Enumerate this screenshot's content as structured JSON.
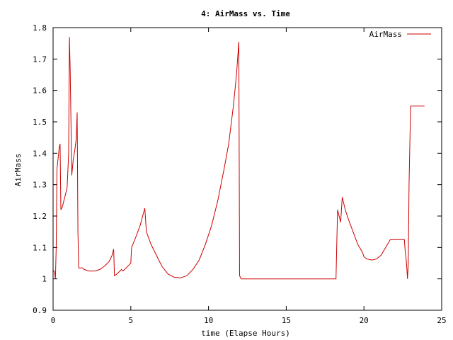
{
  "chart_data": {
    "type": "line",
    "title": "4: AirMass vs. Time",
    "xlabel": "time (Elapse Hours)",
    "ylabel": "AirMass",
    "xlim": [
      0,
      25
    ],
    "ylim": [
      0.9,
      1.8
    ],
    "xticks": [
      0,
      5,
      10,
      15,
      20,
      25
    ],
    "xtick_labels": [
      "0",
      "5",
      "10",
      "15",
      "20",
      "25"
    ],
    "yticks": [
      0.9,
      1,
      1.1,
      1.2,
      1.3,
      1.4,
      1.5,
      1.6,
      1.7,
      1.8
    ],
    "ytick_labels": [
      "0.9",
      "1",
      "1.1",
      "1.2",
      "1.3",
      "1.4",
      "1.5",
      "1.6",
      "1.7",
      "1.8"
    ],
    "grid": false,
    "legend_position": "top-right",
    "series": [
      {
        "name": "AirMass",
        "color": "#cc0000",
        "points": [
          [
            0.0,
            1.03
          ],
          [
            0.1,
            1.02
          ],
          [
            0.15,
            1.0
          ],
          [
            0.2,
            1.1
          ],
          [
            0.25,
            1.35
          ],
          [
            0.4,
            1.42
          ],
          [
            0.45,
            1.43
          ],
          [
            0.5,
            1.22
          ],
          [
            0.6,
            1.23
          ],
          [
            0.7,
            1.25
          ],
          [
            0.8,
            1.27
          ],
          [
            0.9,
            1.29
          ],
          [
            1.0,
            1.4
          ],
          [
            1.05,
            1.77
          ],
          [
            1.1,
            1.66
          ],
          [
            1.2,
            1.33
          ],
          [
            1.3,
            1.38
          ],
          [
            1.4,
            1.41
          ],
          [
            1.5,
            1.45
          ],
          [
            1.55,
            1.53
          ],
          [
            1.6,
            1.15
          ],
          [
            1.65,
            1.035
          ],
          [
            1.9,
            1.035
          ],
          [
            2.0,
            1.03
          ],
          [
            2.3,
            1.025
          ],
          [
            2.7,
            1.025
          ],
          [
            3.0,
            1.03
          ],
          [
            3.3,
            1.04
          ],
          [
            3.6,
            1.055
          ],
          [
            3.8,
            1.075
          ],
          [
            3.9,
            1.095
          ],
          [
            3.95,
            1.01
          ],
          [
            4.1,
            1.015
          ],
          [
            4.3,
            1.025
          ],
          [
            4.4,
            1.03
          ],
          [
            4.5,
            1.025
          ],
          [
            4.6,
            1.03
          ],
          [
            4.7,
            1.035
          ],
          [
            4.9,
            1.045
          ],
          [
            5.0,
            1.05
          ],
          [
            5.05,
            1.1
          ],
          [
            5.3,
            1.13
          ],
          [
            5.6,
            1.17
          ],
          [
            5.9,
            1.225
          ],
          [
            6.0,
            1.15
          ],
          [
            6.3,
            1.11
          ],
          [
            6.7,
            1.07
          ],
          [
            7.0,
            1.04
          ],
          [
            7.4,
            1.015
          ],
          [
            7.8,
            1.005
          ],
          [
            8.2,
            1.003
          ],
          [
            8.6,
            1.01
          ],
          [
            9.0,
            1.03
          ],
          [
            9.4,
            1.06
          ],
          [
            9.8,
            1.11
          ],
          [
            10.2,
            1.17
          ],
          [
            10.6,
            1.25
          ],
          [
            11.0,
            1.35
          ],
          [
            11.3,
            1.43
          ],
          [
            11.6,
            1.55
          ],
          [
            11.8,
            1.65
          ],
          [
            11.95,
            1.755
          ],
          [
            12.0,
            1.01
          ],
          [
            12.1,
            1.0
          ],
          [
            18.2,
            1.0
          ],
          [
            18.3,
            1.22
          ],
          [
            18.4,
            1.2
          ],
          [
            18.5,
            1.18
          ],
          [
            18.6,
            1.26
          ],
          [
            18.8,
            1.22
          ],
          [
            19.0,
            1.19
          ],
          [
            19.3,
            1.15
          ],
          [
            19.6,
            1.11
          ],
          [
            19.9,
            1.085
          ],
          [
            20.0,
            1.07
          ],
          [
            20.2,
            1.063
          ],
          [
            20.5,
            1.06
          ],
          [
            20.8,
            1.063
          ],
          [
            21.1,
            1.075
          ],
          [
            21.4,
            1.1
          ],
          [
            21.7,
            1.125
          ],
          [
            22.6,
            1.125
          ],
          [
            22.65,
            1.09
          ],
          [
            22.7,
            1.07
          ],
          [
            22.75,
            1.04
          ],
          [
            22.8,
            1.0
          ],
          [
            22.85,
            1.05
          ],
          [
            22.9,
            1.3
          ],
          [
            23.0,
            1.55
          ],
          [
            23.9,
            1.55
          ]
        ]
      }
    ]
  }
}
